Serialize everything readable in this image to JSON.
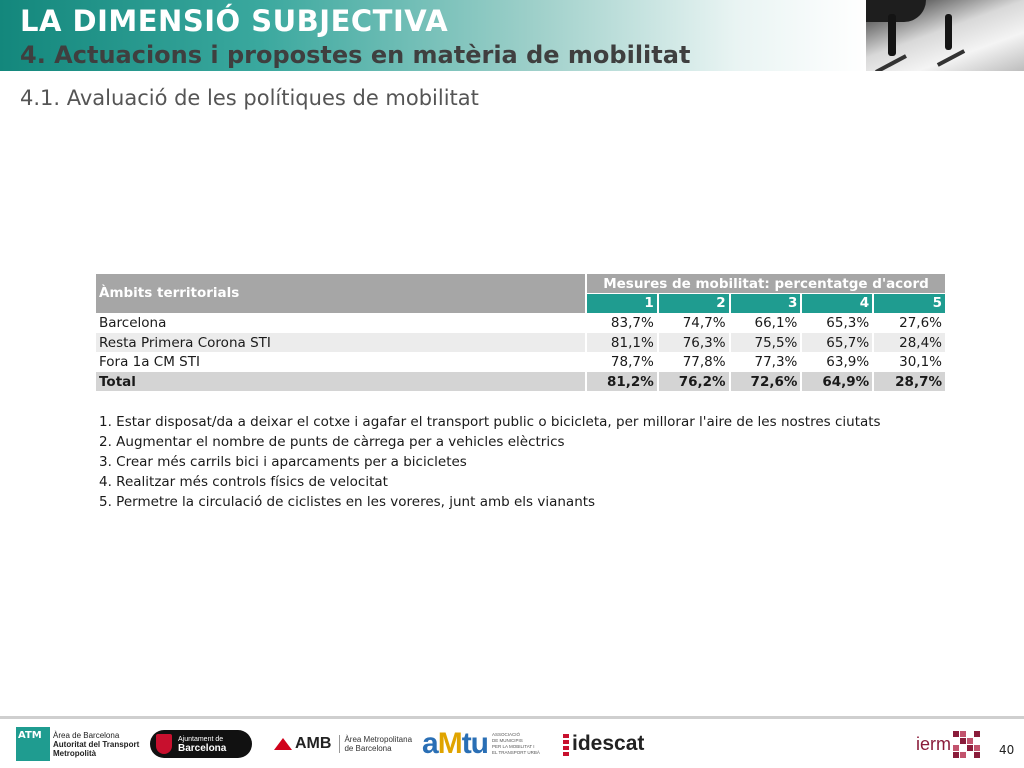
{
  "header": {
    "main_title": "LA DIMENSIÓ SUBJECTIVA",
    "subtitle": "4. Actuacions i propostes en matèria de mobilitat",
    "colors": {
      "accent": "#1f9c90",
      "title_text": "#ffffff",
      "subtitle_text": "#3f3f3f"
    }
  },
  "section_title": "4.1. Avaluació de les polítiques de mobilitat",
  "table": {
    "row_header": "Àmbits territorials",
    "group_header": "Mesures de mobilitat: percentatge d'acord",
    "columns": [
      "1",
      "2",
      "3",
      "4",
      "5"
    ],
    "rows": [
      {
        "label": "Barcelona",
        "values": [
          "83,7%",
          "74,7%",
          "66,1%",
          "65,3%",
          "27,6%"
        ]
      },
      {
        "label": "Resta Primera Corona STI",
        "values": [
          "81,1%",
          "76,3%",
          "75,5%",
          "65,7%",
          "28,4%"
        ]
      },
      {
        "label": "Fora 1a CM STI",
        "values": [
          "78,7%",
          "77,8%",
          "77,3%",
          "63,9%",
          "30,1%"
        ]
      }
    ],
    "total": {
      "label": "Total",
      "values": [
        "81,2%",
        "76,2%",
        "72,6%",
        "64,9%",
        "28,7%"
      ]
    }
  },
  "legend": [
    "1. Estar disposat/da a deixar el cotxe i agafar el transport public o bicicleta, per millorar l'aire de les nostres ciutats",
    "2. Augmentar el nombre de punts de càrrega per a vehicles elèctrics",
    "3. Crear més carrils bici i aparcaments per a bicicletes",
    "4. Realitzar més controls físics de velocitat",
    "5. Permetre la circulació de ciclistes en les voreres, junt amb els vianants"
  ],
  "footer": {
    "logos": {
      "atm": {
        "mark": "ATM",
        "line1": "Àrea de Barcelona",
        "line2": "Autoritat del Transport",
        "line3": "Metropolità"
      },
      "ajuntament": {
        "line1": "Ajuntament de",
        "line2": "Barcelona"
      },
      "amb": {
        "mark": "AMB",
        "line1": "Àrea Metropolitana",
        "line2": "de Barcelona"
      },
      "amtu": {
        "word_a": "a",
        "word_m": "M",
        "word_tu": "tu",
        "line1": "ASSOCIACIÓ",
        "line2": "DE MUNICIPIS",
        "line3": "PER LA MOBILITAT I",
        "line4": "EL TRANSPORT URBÀ"
      },
      "idescat": {
        "word": "idescat"
      },
      "ierm": {
        "word": "ierm"
      }
    },
    "page_number": "40"
  }
}
